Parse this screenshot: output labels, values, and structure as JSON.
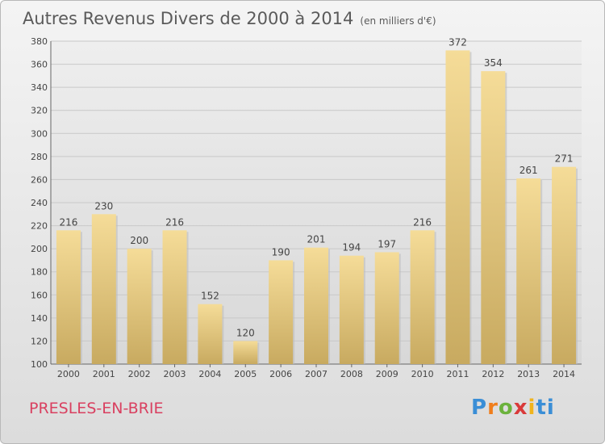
{
  "title": "Autres Revenus Divers de 2000 à 2014",
  "subtitle": "(en milliers d'€)",
  "town": "PRESLES-EN-BRIE",
  "logo": "Proxiti",
  "colors": {
    "bar": "#e8c97a",
    "grid": "#c8c8c8",
    "town": "#d94060"
  },
  "chart_data": {
    "type": "bar",
    "title": "Autres Revenus Divers de 2000 à 2014",
    "subtitle": "(en milliers d'€)",
    "categories": [
      "2000",
      "2001",
      "2002",
      "2003",
      "2004",
      "2005",
      "2006",
      "2007",
      "2008",
      "2009",
      "2010",
      "2011",
      "2012",
      "2013",
      "2014"
    ],
    "values": [
      216,
      230,
      200,
      216,
      152,
      120,
      190,
      201,
      194,
      197,
      216,
      372,
      354,
      261,
      271
    ],
    "ylim": [
      100,
      380
    ],
    "yticks": [
      100,
      120,
      140,
      160,
      180,
      200,
      220,
      240,
      260,
      280,
      300,
      320,
      340,
      360,
      380
    ],
    "grid": true
  }
}
